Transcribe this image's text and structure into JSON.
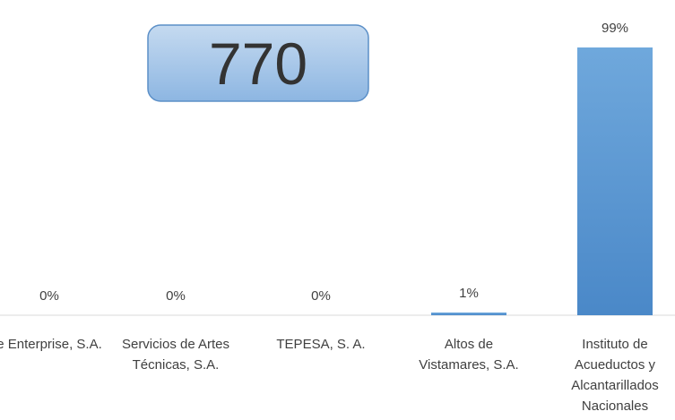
{
  "chart_data": {
    "type": "bar",
    "annotation": "770",
    "categories": [
      "e Enterprise, S.A.",
      "Servicios de Artes Técnicas, S.A.",
      "TEPESA, S. A.",
      "Altos de Vistamares, S.A.",
      "Instituto de Acueductos y Alcantarillados Nacionales"
    ],
    "values": [
      0,
      0,
      0,
      1,
      99
    ],
    "value_labels": [
      "0%",
      "0%",
      "0%",
      "1%",
      "99%"
    ],
    "color": "#5b9bd5",
    "ylim": [
      0,
      100
    ]
  }
}
